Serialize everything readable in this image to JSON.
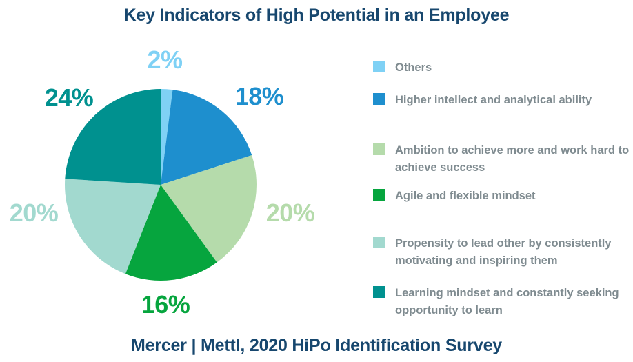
{
  "chart_data": {
    "type": "pie",
    "title": "Key Indicators of High Potential in an Employee",
    "source": "Mercer | Mettl, 2020 HiPo Identification Survey",
    "legend_position": "right",
    "start_angle_deg": 0,
    "direction": "clockwise",
    "slices": [
      {
        "label": "Others",
        "value": 2,
        "display": "2%",
        "color": "#7FD1F5"
      },
      {
        "label": "Higher intellect and analytical ability",
        "value": 18,
        "display": "18%",
        "color": "#1E8FCE"
      },
      {
        "label": "Ambition to achieve more and work hard to achieve success",
        "value": 20,
        "display": "20%",
        "color": "#B5DBAB"
      },
      {
        "label": "Agile and flexible mindset",
        "value": 16,
        "display": "16%",
        "color": "#06A53E"
      },
      {
        "label": "Propensity to lead other by consistently motivating and inspiring them",
        "value": 20,
        "display": "20%",
        "color": "#A2D9CF"
      },
      {
        "label": "Learning mindset and constantly seeking opportunity to learn",
        "value": 24,
        "display": "24%",
        "color": "#00918F"
      }
    ]
  },
  "colors": {
    "title_text": "#17476E",
    "legend_text": "#7F8B90",
    "background": "#FFFFFF"
  }
}
